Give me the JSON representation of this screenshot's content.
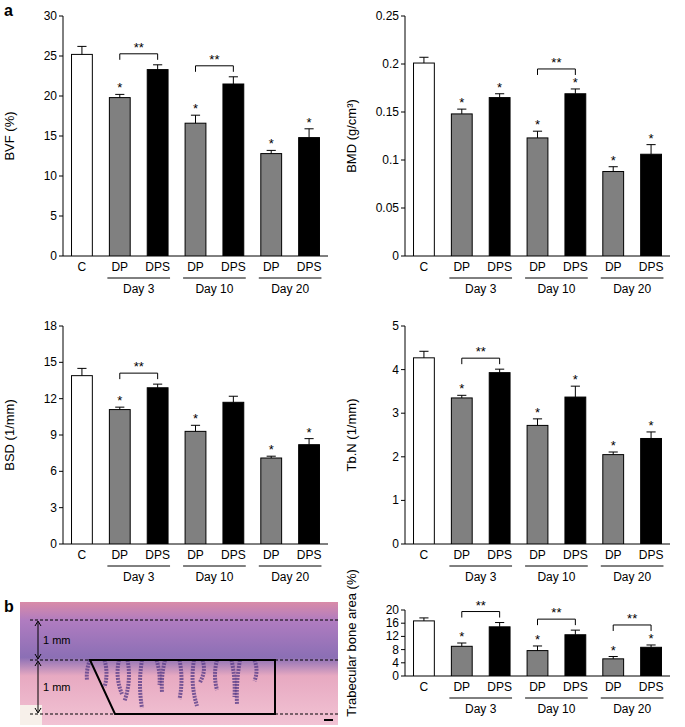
{
  "panel_labels": [
    "a",
    "b"
  ],
  "image": {
    "scale_labels": [
      "1 mm",
      "1 mm"
    ]
  },
  "chart_data": [
    {
      "type": "bar",
      "y_label": "BVF (%)",
      "categories": [
        "C",
        "DP",
        "DPS",
        "DP",
        "DPS",
        "DP",
        "DPS"
      ],
      "category_groups": [
        null,
        "Day 3",
        "Day 3",
        "Day 10",
        "Day 10",
        "Day 20",
        "Day 20"
      ],
      "values": [
        25.2,
        19.8,
        23.3,
        16.6,
        21.5,
        12.8,
        14.8
      ],
      "errors": [
        1.0,
        0.4,
        0.6,
        1.0,
        0.9,
        0.4,
        1.1
      ],
      "significance": [
        null,
        "*",
        null,
        "*",
        null,
        "*",
        "*"
      ],
      "comparisons": [
        {
          "from": 1,
          "to": 2,
          "label": "**"
        },
        {
          "from": 3,
          "to": 4,
          "label": "**"
        }
      ],
      "colors": [
        "#ffffff",
        "#808080",
        "#000000",
        "#808080",
        "#000000",
        "#808080",
        "#000000"
      ],
      "ylim": [
        0,
        30
      ],
      "yticks": [
        0,
        5,
        10,
        15,
        20,
        25,
        30
      ],
      "grid": false
    },
    {
      "type": "bar",
      "y_label": "BMD (g/cm³)",
      "categories": [
        "C",
        "DP",
        "DPS",
        "DP",
        "DPS",
        "DP",
        "DPS"
      ],
      "category_groups": [
        null,
        "Day 3",
        "Day 3",
        "Day 10",
        "Day 10",
        "Day 20",
        "Day 20"
      ],
      "values": [
        0.201,
        0.148,
        0.165,
        0.123,
        0.169,
        0.088,
        0.106
      ],
      "errors": [
        0.006,
        0.005,
        0.004,
        0.007,
        0.005,
        0.005,
        0.01
      ],
      "significance": [
        null,
        "*",
        "*",
        "*",
        "*",
        "*",
        "*"
      ],
      "comparisons": [
        {
          "from": 3,
          "to": 4,
          "label": "**"
        }
      ],
      "colors": [
        "#ffffff",
        "#808080",
        "#000000",
        "#808080",
        "#000000",
        "#808080",
        "#000000"
      ],
      "ylim": [
        0,
        0.25
      ],
      "yticks": [
        0,
        0.05,
        0.1,
        0.15,
        0.2,
        0.25
      ],
      "grid": false
    },
    {
      "type": "bar",
      "y_label": "BSD (1/mm)",
      "categories": [
        "C",
        "DP",
        "DPS",
        "DP",
        "DPS",
        "DP",
        "DPS"
      ],
      "category_groups": [
        null,
        "Day 3",
        "Day 3",
        "Day 10",
        "Day 10",
        "Day 20",
        "Day 20"
      ],
      "values": [
        13.9,
        11.1,
        12.9,
        9.3,
        11.7,
        7.1,
        8.2
      ],
      "errors": [
        0.6,
        0.2,
        0.3,
        0.5,
        0.5,
        0.15,
        0.5
      ],
      "significance": [
        null,
        "*",
        null,
        "*",
        null,
        "*",
        "*"
      ],
      "comparisons": [
        {
          "from": 1,
          "to": 2,
          "label": "**"
        }
      ],
      "colors": [
        "#ffffff",
        "#808080",
        "#000000",
        "#808080",
        "#000000",
        "#808080",
        "#000000"
      ],
      "ylim": [
        0,
        18
      ],
      "yticks": [
        0,
        3,
        6,
        9,
        12,
        15,
        18
      ],
      "grid": false
    },
    {
      "type": "bar",
      "y_label": "Tb.N (1/mm)",
      "categories": [
        "C",
        "DP",
        "DPS",
        "DP",
        "DPS",
        "DP",
        "DPS"
      ],
      "category_groups": [
        null,
        "Day 3",
        "Day 3",
        "Day 10",
        "Day 10",
        "Day 20",
        "Day 20"
      ],
      "values": [
        4.27,
        3.35,
        3.93,
        2.72,
        3.37,
        2.05,
        2.42
      ],
      "errors": [
        0.15,
        0.06,
        0.08,
        0.15,
        0.25,
        0.06,
        0.15
      ],
      "significance": [
        null,
        "*",
        null,
        "*",
        "*",
        "*",
        "*"
      ],
      "comparisons": [
        {
          "from": 1,
          "to": 2,
          "label": "**"
        }
      ],
      "colors": [
        "#ffffff",
        "#808080",
        "#000000",
        "#808080",
        "#000000",
        "#808080",
        "#000000"
      ],
      "ylim": [
        0,
        5
      ],
      "yticks": [
        0,
        1,
        2,
        3,
        4,
        5
      ],
      "grid": false
    },
    {
      "type": "bar",
      "y_label": "Trabecular bone area (%)",
      "categories": [
        "C",
        "DP",
        "DPS",
        "DP",
        "DPS",
        "DP",
        "DPS"
      ],
      "category_groups": [
        null,
        "Day 3",
        "Day 3",
        "Day 10",
        "Day 10",
        "Day 20",
        "Day 20"
      ],
      "values": [
        16.7,
        9.0,
        14.9,
        7.7,
        12.5,
        5.2,
        8.7
      ],
      "errors": [
        0.9,
        1.0,
        1.3,
        1.4,
        1.4,
        0.7,
        0.7
      ],
      "significance": [
        null,
        "*",
        null,
        "*",
        null,
        "*",
        "*"
      ],
      "comparisons": [
        {
          "from": 1,
          "to": 2,
          "label": "**"
        },
        {
          "from": 3,
          "to": 4,
          "label": "**"
        },
        {
          "from": 5,
          "to": 6,
          "label": "**"
        }
      ],
      "colors": [
        "#ffffff",
        "#808080",
        "#000000",
        "#808080",
        "#000000",
        "#808080",
        "#000000"
      ],
      "ylim": [
        0,
        20
      ],
      "yticks": [
        0,
        4,
        8,
        12,
        16,
        20
      ],
      "grid": false
    }
  ]
}
